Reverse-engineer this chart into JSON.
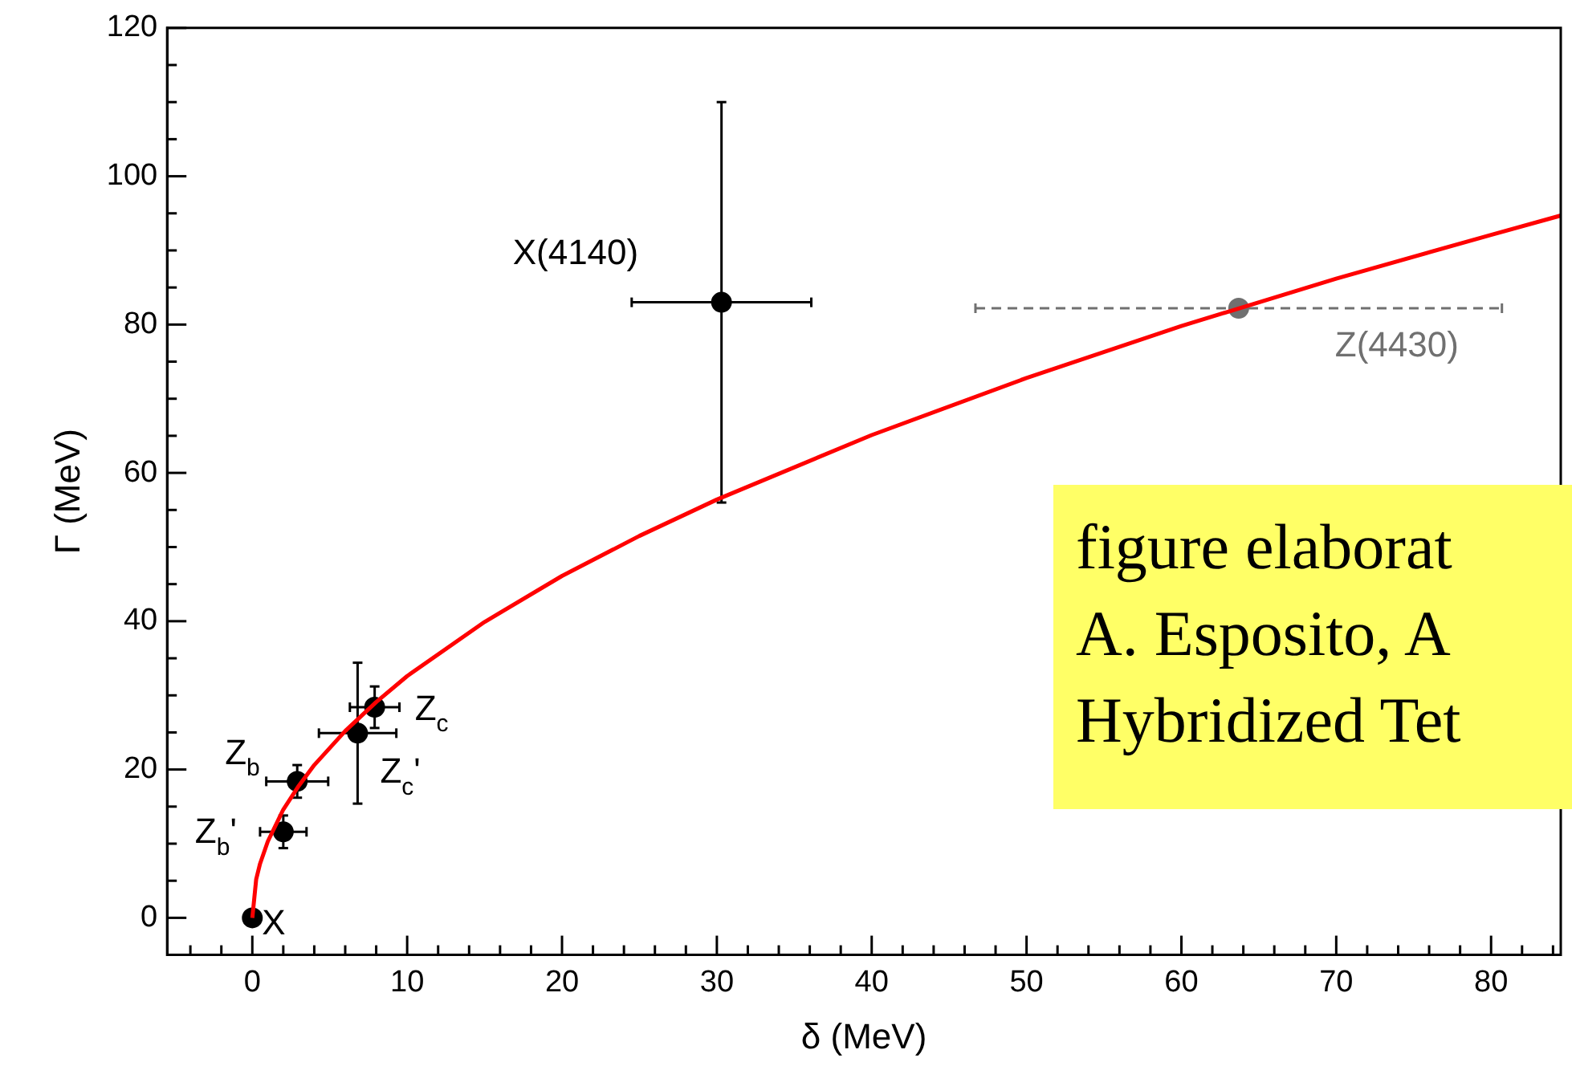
{
  "chart_data": {
    "type": "scatter",
    "xlabel": "δ (MeV)",
    "ylabel": "Γ (MeV)",
    "xlim": [
      -5.5,
      84.5
    ],
    "ylim": [
      -5,
      120
    ],
    "xticks": [
      {
        "value": -4,
        "label": null
      },
      {
        "value": -2,
        "label": null
      },
      0,
      {
        "value": 2,
        "label": null
      },
      {
        "value": 4,
        "label": null
      },
      {
        "value": 6,
        "label": null
      },
      {
        "value": 8,
        "label": null
      },
      10,
      {
        "value": 12,
        "label": null
      },
      {
        "value": 14,
        "label": null
      },
      {
        "value": 16,
        "label": null
      },
      {
        "value": 18,
        "label": null
      },
      20,
      {
        "value": 22,
        "label": null
      },
      {
        "value": 24,
        "label": null
      },
      {
        "value": 26,
        "label": null
      },
      {
        "value": 28,
        "label": null
      },
      30,
      {
        "value": 32,
        "label": null
      },
      {
        "value": 34,
        "label": null
      },
      {
        "value": 36,
        "label": null
      },
      {
        "value": 38,
        "label": null
      },
      40,
      {
        "value": 42,
        "label": null
      },
      {
        "value": 44,
        "label": null
      },
      {
        "value": 46,
        "label": null
      },
      {
        "value": 48,
        "label": null
      },
      50,
      {
        "value": 52,
        "label": null
      },
      {
        "value": 54,
        "label": null
      },
      {
        "value": 56,
        "label": null
      },
      {
        "value": 58,
        "label": null
      },
      60,
      {
        "value": 62,
        "label": null
      },
      {
        "value": 64,
        "label": null
      },
      {
        "value": 66,
        "label": null
      },
      {
        "value": 68,
        "label": null
      },
      70,
      {
        "value": 72,
        "label": null
      },
      {
        "value": 74,
        "label": null
      },
      {
        "value": 76,
        "label": null
      },
      {
        "value": 78,
        "label": null
      },
      80,
      {
        "value": 82,
        "label": null
      },
      {
        "value": 84,
        "label": null
      }
    ],
    "yticks": [
      0,
      {
        "value": 5,
        "label": null
      },
      {
        "value": 10,
        "label": null
      },
      {
        "value": 15,
        "label": null
      },
      20,
      {
        "value": 25,
        "label": null
      },
      {
        "value": 30,
        "label": null
      },
      {
        "value": 35,
        "label": null
      },
      40,
      {
        "value": 45,
        "label": null
      },
      {
        "value": 50,
        "label": null
      },
      {
        "value": 55,
        "label": null
      },
      60,
      {
        "value": 65,
        "label": null
      },
      {
        "value": 70,
        "label": null
      },
      {
        "value": 75,
        "label": null
      },
      80,
      {
        "value": 85,
        "label": null
      },
      {
        "value": 90,
        "label": null
      },
      {
        "value": 95,
        "label": null
      },
      100,
      {
        "value": 105,
        "label": null
      },
      {
        "value": 110,
        "label": null
      },
      {
        "value": 115,
        "label": null
      },
      120
    ],
    "grid": false,
    "legend": false,
    "marker": "circle",
    "series": [
      {
        "type": "line",
        "color": "#ff0000",
        "marker": "none",
        "line_style": "solid",
        "x": [
          0,
          0.25,
          0.5,
          1,
          2,
          3,
          4,
          6,
          8,
          10,
          15,
          20,
          25,
          30,
          40,
          50,
          60,
          70,
          80,
          84.5
        ],
        "values": [
          0,
          5.2,
          7.3,
          10.3,
          14.6,
          17.8,
          20.6,
          25.2,
          29.1,
          32.6,
          39.9,
          46.1,
          51.5,
          56.4,
          65.1,
          72.8,
          79.8,
          86.2,
          92.1,
          94.7
        ]
      },
      {
        "color": "#000000",
        "line_style": "solid",
        "x": [
          0,
          2,
          2.9,
          6.8,
          7.9,
          30.3
        ],
        "values": [
          0,
          11.6,
          18.4,
          24.9,
          28.4,
          83
        ],
        "errors": [
          null,
          2.2,
          2.2,
          9.5,
          2.8,
          27
        ],
        "xerrors": [
          null,
          1.5,
          2,
          2.5,
          1.6,
          5.8
        ]
      },
      {
        "color": "#707070",
        "line_style": "dashed",
        "x": [
          63.7
        ],
        "values": [
          82.2
        ],
        "errors": [
          null
        ],
        "xerrors": [
          17
        ]
      }
    ],
    "annotations": [
      {
        "text": "X",
        "x": 0,
        "y": 0
      },
      {
        "text": "Z$_{b}$'",
        "x": 2,
        "y": 11.6
      },
      {
        "text": "Z$_{b}$",
        "x": 2.9,
        "y": 18.4
      },
      {
        "text": "Z$_{c}$'",
        "x": 6.8,
        "y": 24.9
      },
      {
        "text": "Z$_{c}$",
        "x": 7.9,
        "y": 28.4
      },
      {
        "text": "X(4140)",
        "x": 30.3,
        "y": 83
      },
      {
        "text": "Z(4430)",
        "x": 63.7,
        "y": 82.2
      },
      "figure elaborat",
      "A. Esposito, A",
      "Hybridized Tet"
    ]
  }
}
